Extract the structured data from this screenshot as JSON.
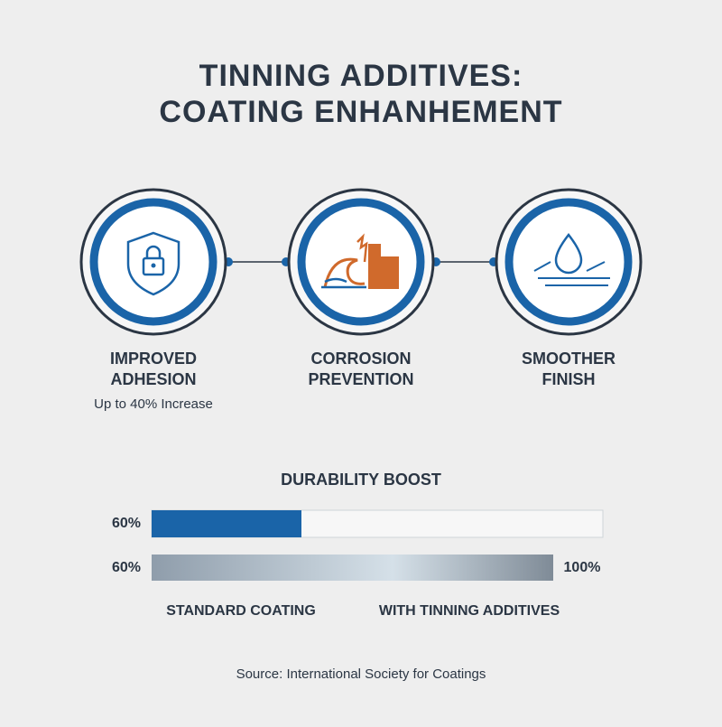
{
  "header": {
    "title_lines": [
      "TINNING ADDITIVES:",
      "COATING ENHANHEMENT"
    ]
  },
  "features": [
    {
      "label_lines": [
        "IMPROVED",
        "ADHESION"
      ],
      "note": "Up to 40% Increase"
    },
    {
      "label_lines": [
        "CORROSION",
        "PREVENTION"
      ]
    },
    {
      "label_lines": [
        "SMOOTHER",
        "FINISH"
      ]
    }
  ],
  "durability": {
    "title": "DURABILITY BOOST",
    "bars": [
      {
        "left_label": "60%"
      },
      {
        "left_label": "60%",
        "right_label": "100%"
      }
    ],
    "legend": [
      "STANDARD COATING",
      "WITH TINNING ADDITIVES"
    ]
  },
  "footer": {
    "source": "Source: International Society for Coatings"
  }
}
